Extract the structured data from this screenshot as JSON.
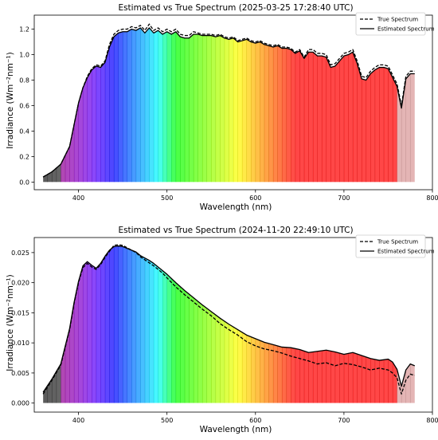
{
  "chart_data": [
    {
      "type": "line",
      "title": "Estimated vs True Spectrum (2025-03-25 17:28:40 UTC)",
      "xlabel": "Wavelength (nm)",
      "ylabel": "Irradiance (Wm⁻²nm⁻¹)",
      "xlim": [
        350,
        800
      ],
      "ylim": [
        -0.06,
        1.31
      ],
      "xticks": [
        "400",
        "500",
        "600",
        "700",
        "800"
      ],
      "yticks": [
        "0.0",
        "0.2",
        "0.4",
        "0.6",
        "0.8",
        "1.0",
        "1.2"
      ],
      "legend_position": "top-right",
      "grid": false,
      "series": [
        {
          "name": "True Spectrum",
          "style": "dashed",
          "x": [
            360,
            370,
            380,
            390,
            395,
            400,
            405,
            410,
            415,
            420,
            425,
            430,
            435,
            440,
            445,
            450,
            455,
            460,
            465,
            470,
            475,
            480,
            485,
            490,
            495,
            500,
            505,
            510,
            515,
            520,
            525,
            530,
            535,
            540,
            545,
            550,
            555,
            560,
            565,
            570,
            575,
            580,
            585,
            590,
            595,
            600,
            605,
            610,
            615,
            620,
            625,
            630,
            635,
            640,
            645,
            650,
            655,
            660,
            665,
            670,
            675,
            680,
            685,
            690,
            695,
            700,
            705,
            710,
            715,
            720,
            725,
            730,
            735,
            740,
            745,
            750,
            755,
            760,
            765,
            770,
            775,
            780
          ],
          "y": [
            0.04,
            0.08,
            0.14,
            0.28,
            0.45,
            0.62,
            0.74,
            0.83,
            0.89,
            0.92,
            0.91,
            0.95,
            1.08,
            1.16,
            1.19,
            1.2,
            1.2,
            1.22,
            1.21,
            1.23,
            1.19,
            1.24,
            1.19,
            1.21,
            1.18,
            1.2,
            1.18,
            1.2,
            1.16,
            1.15,
            1.15,
            1.18,
            1.17,
            1.16,
            1.16,
            1.16,
            1.15,
            1.16,
            1.14,
            1.13,
            1.14,
            1.11,
            1.12,
            1.13,
            1.11,
            1.1,
            1.11,
            1.09,
            1.08,
            1.07,
            1.08,
            1.06,
            1.06,
            1.05,
            1.02,
            1.04,
            0.98,
            1.04,
            1.04,
            1.01,
            1.01,
            1.0,
            0.92,
            0.93,
            0.97,
            1.01,
            1.02,
            1.04,
            0.95,
            0.83,
            0.82,
            0.87,
            0.9,
            0.92,
            0.92,
            0.91,
            0.84,
            0.77,
            0.6,
            0.83,
            0.87,
            0.87
          ]
        },
        {
          "name": "Estimated Spectrum",
          "style": "solid",
          "x": [
            360,
            370,
            380,
            390,
            395,
            400,
            405,
            410,
            415,
            420,
            425,
            430,
            435,
            440,
            445,
            450,
            455,
            460,
            465,
            470,
            475,
            480,
            485,
            490,
            495,
            500,
            505,
            510,
            515,
            520,
            525,
            530,
            535,
            540,
            545,
            550,
            555,
            560,
            565,
            570,
            575,
            580,
            585,
            590,
            595,
            600,
            605,
            610,
            615,
            620,
            625,
            630,
            635,
            640,
            645,
            650,
            655,
            660,
            665,
            670,
            675,
            680,
            685,
            690,
            695,
            700,
            705,
            710,
            715,
            720,
            725,
            730,
            735,
            740,
            745,
            750,
            755,
            760,
            765,
            770,
            775,
            780
          ],
          "y": [
            0.04,
            0.08,
            0.14,
            0.28,
            0.45,
            0.62,
            0.74,
            0.82,
            0.88,
            0.91,
            0.9,
            0.94,
            1.06,
            1.14,
            1.17,
            1.18,
            1.18,
            1.2,
            1.19,
            1.21,
            1.17,
            1.21,
            1.17,
            1.19,
            1.16,
            1.18,
            1.16,
            1.18,
            1.14,
            1.13,
            1.13,
            1.16,
            1.16,
            1.15,
            1.15,
            1.15,
            1.14,
            1.15,
            1.13,
            1.12,
            1.13,
            1.1,
            1.11,
            1.12,
            1.1,
            1.09,
            1.1,
            1.08,
            1.07,
            1.06,
            1.07,
            1.05,
            1.05,
            1.04,
            1.01,
            1.03,
            0.97,
            1.02,
            1.02,
            0.99,
            0.99,
            0.98,
            0.9,
            0.91,
            0.95,
            0.99,
            1.0,
            1.02,
            0.93,
            0.81,
            0.8,
            0.85,
            0.88,
            0.9,
            0.9,
            0.89,
            0.82,
            0.75,
            0.58,
            0.81,
            0.85,
            0.85
          ]
        }
      ]
    },
    {
      "type": "line",
      "title": "Estimated vs True Spectrum (2024-11-20 22:49:10 UTC)",
      "xlabel": "Wavelength (nm)",
      "ylabel": "Irradiance (Wm⁻²nm⁻¹)",
      "xlim": [
        350,
        800
      ],
      "ylim": [
        -0.0015,
        0.0275
      ],
      "xticks": [
        "400",
        "500",
        "600",
        "700",
        "800"
      ],
      "yticks": [
        "0.000",
        "0.005",
        "0.010",
        "0.015",
        "0.020",
        "0.025"
      ],
      "legend_position": "top-right",
      "grid": false,
      "series": [
        {
          "name": "True Spectrum",
          "style": "dashed",
          "x": [
            360,
            370,
            380,
            390,
            395,
            400,
            405,
            410,
            415,
            420,
            425,
            430,
            435,
            440,
            445,
            450,
            455,
            460,
            465,
            470,
            475,
            480,
            485,
            490,
            495,
            500,
            510,
            520,
            530,
            540,
            550,
            560,
            570,
            580,
            590,
            600,
            610,
            620,
            630,
            640,
            650,
            660,
            670,
            680,
            690,
            700,
            710,
            720,
            730,
            740,
            750,
            755,
            760,
            765,
            770,
            775,
            780
          ],
          "y": [
            0.0015,
            0.0038,
            0.0063,
            0.0122,
            0.0165,
            0.02,
            0.0225,
            0.0232,
            0.0226,
            0.0222,
            0.023,
            0.0242,
            0.0252,
            0.0262,
            0.0263,
            0.0262,
            0.0258,
            0.0254,
            0.025,
            0.0243,
            0.0238,
            0.0233,
            0.0228,
            0.0222,
            0.0216,
            0.0208,
            0.0193,
            0.018,
            0.0168,
            0.0156,
            0.0145,
            0.0132,
            0.0122,
            0.0113,
            0.0102,
            0.0095,
            0.009,
            0.0087,
            0.0083,
            0.0078,
            0.0074,
            0.007,
            0.0065,
            0.0067,
            0.0062,
            0.0066,
            0.0064,
            0.006,
            0.0055,
            0.0058,
            0.0055,
            0.005,
            0.0042,
            0.0015,
            0.0038,
            0.0048,
            0.0046
          ]
        },
        {
          "name": "Estimated Spectrum",
          "style": "solid",
          "x": [
            360,
            370,
            380,
            390,
            395,
            400,
            405,
            410,
            415,
            420,
            425,
            430,
            435,
            440,
            445,
            450,
            455,
            460,
            465,
            470,
            475,
            480,
            485,
            490,
            495,
            500,
            510,
            520,
            530,
            540,
            550,
            560,
            570,
            580,
            590,
            600,
            610,
            620,
            630,
            640,
            650,
            660,
            670,
            680,
            690,
            700,
            710,
            720,
            730,
            740,
            750,
            755,
            760,
            765,
            770,
            775,
            780
          ],
          "y": [
            0.0018,
            0.004,
            0.0065,
            0.0124,
            0.0167,
            0.0202,
            0.0228,
            0.0235,
            0.0229,
            0.0224,
            0.0232,
            0.0244,
            0.0254,
            0.026,
            0.0261,
            0.026,
            0.0257,
            0.0254,
            0.0251,
            0.0245,
            0.0241,
            0.0237,
            0.0232,
            0.0226,
            0.022,
            0.0214,
            0.02,
            0.0187,
            0.0175,
            0.0163,
            0.0152,
            0.0141,
            0.0131,
            0.0122,
            0.0113,
            0.0107,
            0.0101,
            0.0097,
            0.0093,
            0.0092,
            0.0089,
            0.0084,
            0.0086,
            0.0088,
            0.0085,
            0.0081,
            0.0084,
            0.0079,
            0.0074,
            0.0071,
            0.0073,
            0.0068,
            0.0056,
            0.0028,
            0.0055,
            0.0065,
            0.0062
          ]
        }
      ]
    }
  ]
}
